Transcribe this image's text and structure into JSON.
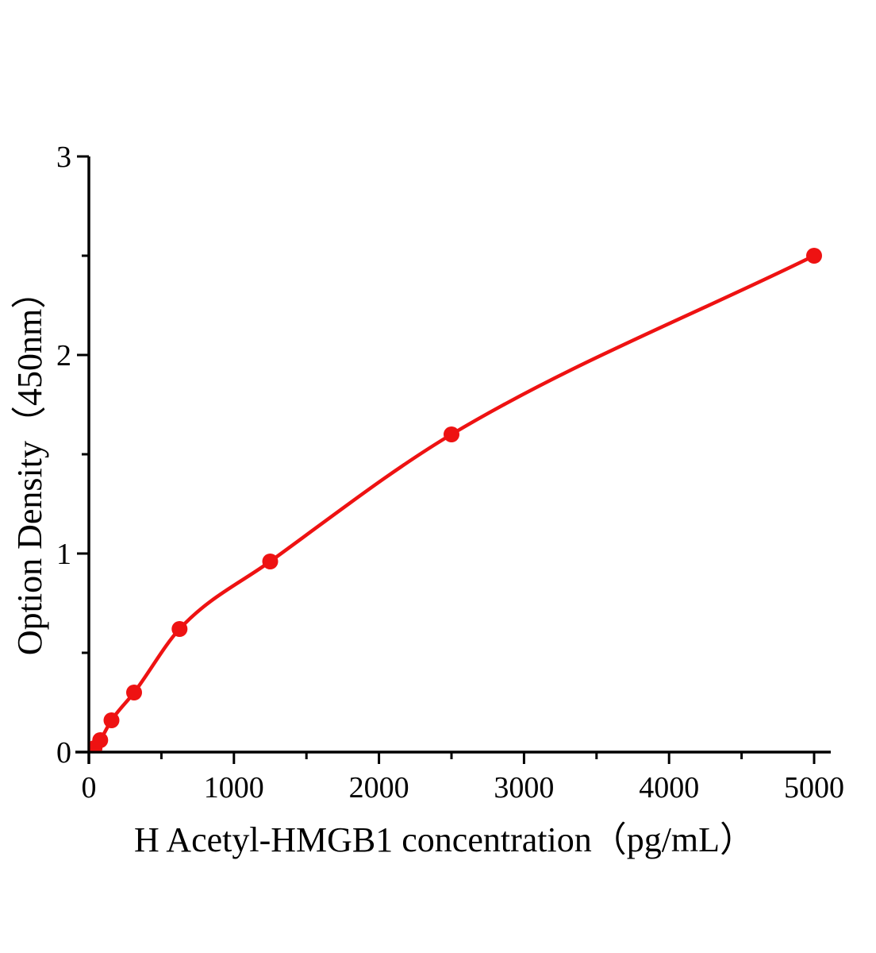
{
  "figure": {
    "background": "#ffffff"
  },
  "chart_data": {
    "type": "scatter",
    "title": "",
    "xlabel": "H Acetyl-HMGB1 concentration（pg/mL）",
    "ylabel": "Option Density（450nm）",
    "series": [
      {
        "color": "#ee1212",
        "marker": "circle",
        "line": "smooth",
        "points": [
          {
            "x": 39,
            "y": 0.02
          },
          {
            "x": 78,
            "y": 0.06
          },
          {
            "x": 156,
            "y": 0.16
          },
          {
            "x": 312,
            "y": 0.3
          },
          {
            "x": 625,
            "y": 0.62
          },
          {
            "x": 1250,
            "y": 0.96
          },
          {
            "x": 2500,
            "y": 1.6
          },
          {
            "x": 5000,
            "y": 2.5
          }
        ]
      }
    ],
    "xlim": [
      0,
      5000
    ],
    "ylim": [
      0,
      3
    ],
    "x_major_ticks": [
      0,
      1000,
      2000,
      3000,
      4000,
      5000
    ],
    "x_minor_ticks": [
      500,
      1500,
      2500,
      3500,
      4500
    ],
    "y_major_ticks": [
      0,
      1,
      2,
      3
    ],
    "y_minor_ticks": [
      0.5,
      1.5,
      2.5
    ],
    "grid": false,
    "legend_position": "none",
    "axis_color": "#000000"
  }
}
